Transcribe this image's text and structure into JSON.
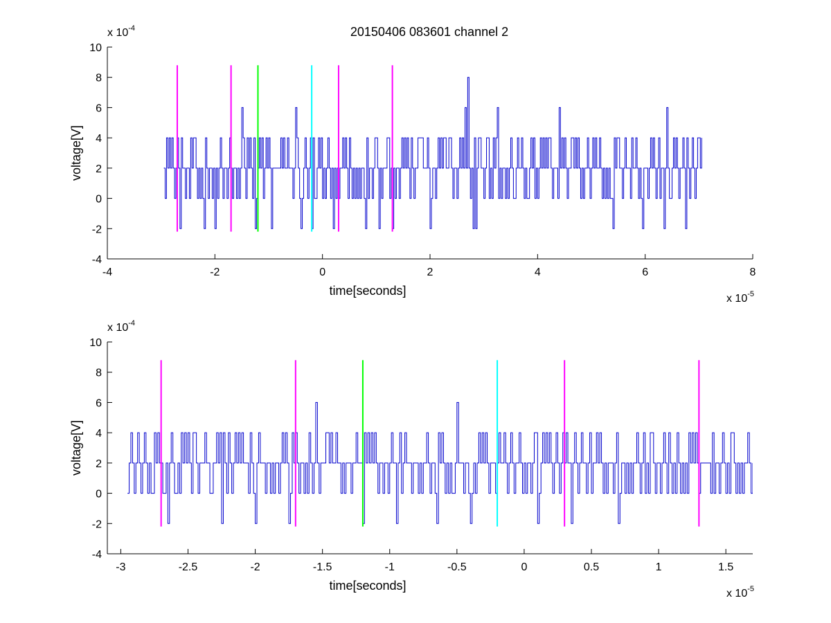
{
  "figure": {
    "title": "20150406 083601 channel 2"
  },
  "chart_data": [
    {
      "type": "line",
      "title": "20150406 083601 channel 2",
      "xlabel": "time[seconds]",
      "ylabel": "voltage[V]",
      "x_multiplier": "x 10",
      "x_exponent": "-5",
      "y_multiplier": "x 10",
      "y_exponent": "-4",
      "xlim": [
        -4,
        8
      ],
      "ylim": [
        -4,
        10
      ],
      "xticks": [
        -4,
        -2,
        0,
        2,
        4,
        6,
        8
      ],
      "xtick_labels": [
        "-4",
        "-2",
        "0",
        "2",
        "4",
        "6",
        "8"
      ],
      "yticks": [
        -4,
        -2,
        0,
        2,
        4,
        6,
        8,
        10
      ],
      "ytick_labels": [
        "-4",
        "-2",
        "0",
        "2",
        "4",
        "6",
        "8",
        "10"
      ],
      "grid": false,
      "series": [
        {
          "kind": "signal",
          "color": "#0000cc",
          "x_start": -2.95,
          "x_end": 7.05,
          "step": 0.025,
          "level_values": [
            -2,
            0,
            2,
            4,
            6,
            8
          ],
          "notes_peaks": [
            [
              -1.5,
              6
            ],
            [
              -0.5,
              6
            ],
            [
              2.65,
              6
            ],
            [
              2.8,
              6
            ],
            [
              3.25,
              6
            ],
            [
              4.4,
              6
            ],
            [
              6.4,
              6
            ],
            [
              2.7,
              8
            ]
          ],
          "notes_dips": [
            [
              -2.65,
              -2
            ],
            [
              -2.2,
              -2
            ],
            [
              -2.0,
              -2
            ],
            [
              -1.25,
              -2
            ],
            [
              -0.95,
              -2
            ],
            [
              -0.4,
              -2
            ],
            [
              -0.2,
              -2
            ],
            [
              0.2,
              -2
            ],
            [
              0.8,
              -2
            ],
            [
              1.05,
              -2
            ],
            [
              1.3,
              -2
            ],
            [
              2.0,
              -2
            ],
            [
              2.8,
              -2
            ],
            [
              2.85,
              -2
            ],
            [
              5.4,
              -2
            ],
            [
              5.95,
              -2
            ],
            [
              6.35,
              -2
            ],
            [
              6.75,
              -2
            ]
          ]
        }
      ],
      "markers": [
        {
          "x": -2.7,
          "color": "#ff00ff",
          "y_range": [
            -2.2,
            8.8
          ]
        },
        {
          "x": -1.7,
          "color": "#ff00ff",
          "y_range": [
            -2.2,
            8.8
          ]
        },
        {
          "x": -1.2,
          "color": "#00ff00",
          "y_range": [
            -2.2,
            8.8
          ]
        },
        {
          "x": -0.2,
          "color": "#00ffff",
          "y_range": [
            -2.2,
            8.8
          ]
        },
        {
          "x": 0.3,
          "color": "#ff00ff",
          "y_range": [
            -2.2,
            8.8
          ]
        },
        {
          "x": 1.3,
          "color": "#ff00ff",
          "y_range": [
            -2.2,
            8.8
          ]
        }
      ]
    },
    {
      "type": "line",
      "title": "",
      "xlabel": "time[seconds]",
      "ylabel": "voltage[V]",
      "x_multiplier": "x 10",
      "x_exponent": "-5",
      "y_multiplier": "x 10",
      "y_exponent": "-4",
      "xlim": [
        -3.1,
        1.7
      ],
      "ylim": [
        -4,
        10
      ],
      "xticks": [
        -3,
        -2.5,
        -2,
        -1.5,
        -1,
        -0.5,
        0,
        0.5,
        1,
        1.5
      ],
      "xtick_labels": [
        "-3",
        "-2.5",
        "-2",
        "-1.5",
        "-1",
        "-0.5",
        "0",
        "0.5",
        "1",
        "1.5"
      ],
      "yticks": [
        -4,
        -2,
        0,
        2,
        4,
        6,
        8,
        10
      ],
      "ytick_labels": [
        "-4",
        "-2",
        "0",
        "2",
        "4",
        "6",
        "8",
        "10"
      ],
      "grid": false,
      "series": [
        {
          "kind": "signal",
          "color": "#0000cc",
          "x_start": -2.95,
          "x_end": 1.7,
          "step": 0.0125,
          "level_values": [
            -2,
            0,
            2,
            4,
            6
          ],
          "notes_peaks": [
            [
              -1.55,
              6
            ],
            [
              -0.5,
              6
            ]
          ],
          "notes_dips": [
            [
              -2.65,
              -2
            ],
            [
              -2.25,
              -2
            ],
            [
              -2.0,
              -2
            ],
            [
              -1.75,
              -2
            ],
            [
              -1.2,
              -2
            ],
            [
              -0.95,
              -2
            ],
            [
              -0.65,
              -2
            ],
            [
              -0.4,
              -2
            ],
            [
              0.1,
              -2
            ],
            [
              0.35,
              -2
            ],
            [
              0.7,
              -2
            ]
          ]
        }
      ],
      "markers": [
        {
          "x": -2.7,
          "color": "#ff00ff",
          "y_range": [
            -2.2,
            8.8
          ]
        },
        {
          "x": -1.7,
          "color": "#ff00ff",
          "y_range": [
            -2.2,
            8.8
          ]
        },
        {
          "x": -1.2,
          "color": "#00ff00",
          "y_range": [
            -2.2,
            8.8
          ]
        },
        {
          "x": -0.2,
          "color": "#00ffff",
          "y_range": [
            -2.2,
            8.8
          ]
        },
        {
          "x": 0.3,
          "color": "#ff00ff",
          "y_range": [
            -2.2,
            8.8
          ]
        },
        {
          "x": 1.3,
          "color": "#ff00ff",
          "y_range": [
            -2.2,
            8.8
          ]
        }
      ]
    }
  ]
}
